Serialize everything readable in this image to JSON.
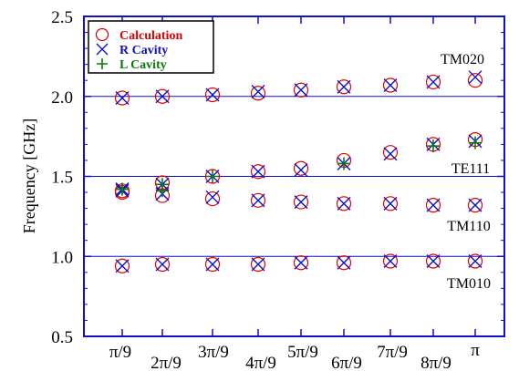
{
  "chart_data": {
    "type": "scatter",
    "ylabel": "Frequency  [GHz]",
    "xlabel": "",
    "ylim": [
      0.5,
      2.5
    ],
    "yticks": [
      "0.5",
      "1.0",
      "1.5",
      "2.0",
      "2.5"
    ],
    "categories": [
      "π/9",
      "2π/9",
      "3π/9",
      "4π/9",
      "5π/9",
      "6π/9",
      "7π/9",
      "8π/9",
      "π"
    ],
    "legend": {
      "placement": "top-left",
      "entries": [
        "Calculation",
        "R Cavity",
        "L Cavity"
      ]
    },
    "colors": {
      "Calculation": "#e00000",
      "R Cavity": "#1010c8",
      "L Cavity": "#0a7a0a",
      "guide": "#1010c8"
    },
    "guide_lines": [
      2.0,
      1.5,
      1.0
    ],
    "band_labels": [
      "TM020",
      "TE111",
      "TM110",
      "TM010"
    ],
    "series": [
      {
        "name": "Calculation",
        "marker": "circle",
        "bands": [
          [
            1.99,
            2.0,
            2.01,
            2.02,
            2.04,
            2.06,
            2.07,
            2.09,
            2.1
          ],
          [
            1.41,
            1.46,
            1.5,
            1.53,
            1.55,
            1.6,
            1.65,
            1.7,
            1.73
          ],
          [
            1.4,
            1.38,
            1.36,
            1.35,
            1.34,
            1.33,
            1.33,
            1.32,
            1.32
          ],
          [
            0.94,
            0.95,
            0.95,
            0.95,
            0.96,
            0.96,
            0.97,
            0.97,
            0.97
          ]
        ]
      },
      {
        "name": "R Cavity",
        "marker": "x",
        "bands": [
          [
            1.99,
            2.0,
            2.01,
            2.03,
            2.04,
            2.06,
            2.07,
            2.09,
            2.12
          ],
          [
            1.42,
            1.45,
            1.5,
            1.53,
            1.54,
            1.58,
            1.64,
            1.7,
            1.72
          ],
          [
            1.41,
            1.39,
            1.37,
            1.35,
            1.34,
            1.33,
            1.33,
            1.32,
            1.32
          ],
          [
            0.94,
            0.95,
            0.95,
            0.95,
            0.96,
            0.96,
            0.97,
            0.97,
            0.97
          ]
        ]
      },
      {
        "name": "L Cavity",
        "marker": "plus",
        "bands": [
          [],
          [
            1.42,
            1.45,
            1.5,
            null,
            null,
            1.58,
            null,
            1.69,
            1.71
          ],
          [
            1.42,
            1.41,
            null,
            null,
            null,
            null,
            null,
            null,
            null
          ],
          []
        ]
      }
    ]
  }
}
